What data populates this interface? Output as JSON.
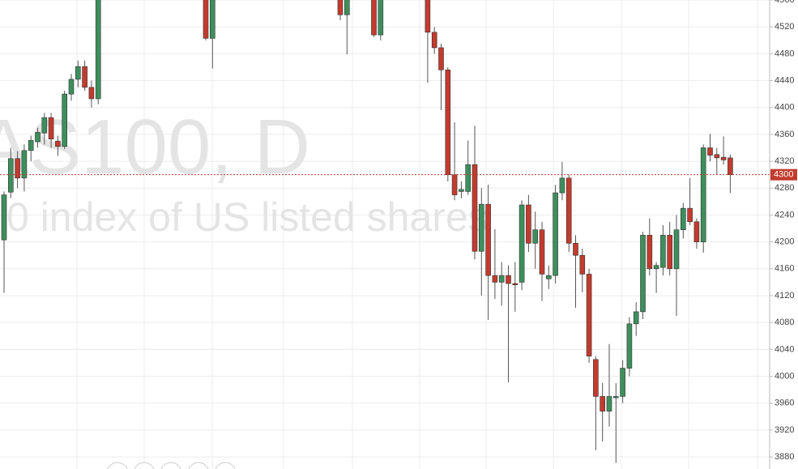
{
  "chart_data": {
    "type": "candlestick",
    "watermark_title": "AS100, D",
    "watermark_subtitle": "0 index of US listed shares",
    "up_color": "#3d8f5c",
    "down_color": "#c23b2e",
    "grid": true,
    "ylim": [
      3862,
      4560
    ],
    "yticks": [
      3880,
      3920,
      3960,
      4000,
      4040,
      4080,
      4120,
      4160,
      4200,
      4240,
      4280,
      4320,
      4360,
      4400,
      4440,
      4480,
      4520,
      4560
    ],
    "last_price": 4300,
    "open": [
      4203,
      4274,
      4324,
      4295,
      4336,
      4349,
      4362,
      4385,
      4350,
      4342,
      4420,
      4442,
      4461,
      4430,
      4413,
      null,
      null,
      null,
      null,
      null,
      null,
      null,
      null,
      null,
      null,
      null,
      null,
      null,
      null,
      null,
      4570,
      4503,
      null,
      null,
      null,
      null,
      null,
      null,
      null,
      null,
      null,
      null,
      null,
      null,
      null,
      null,
      null,
      null,
      null,
      null,
      4570,
      4538,
      null,
      null,
      null,
      4570,
      4508,
      null,
      null,
      null,
      null,
      null,
      null,
      4570,
      4512,
      4489,
      4456,
      4300,
      4275,
      4275,
      4315,
      4186,
      4256,
      4150,
      4140,
      4150,
      4138,
      4140,
      4255,
      4198,
      4218,
      4145,
      4150,
      4273,
      4295,
      4198,
      4180,
      4152,
      4025,
      3970,
      3948,
      3968,
      3970,
      4012,
      4078,
      4096,
      4210,
      4160,
      4162,
      4210,
      4160,
      4218,
      4250,
      4230,
      4200,
      4340,
      4330,
      4326,
      4325
    ],
    "close": [
      4270,
      4324,
      4295,
      4336,
      4351,
      4363,
      4385,
      4353,
      4342,
      4420,
      4442,
      4461,
      4430,
      4413,
      4570,
      null,
      null,
      null,
      null,
      null,
      null,
      null,
      null,
      null,
      null,
      null,
      null,
      null,
      null,
      null,
      4503,
      4570,
      null,
      null,
      null,
      null,
      null,
      null,
      null,
      null,
      null,
      null,
      null,
      null,
      null,
      null,
      null,
      null,
      null,
      null,
      4538,
      4570,
      null,
      null,
      null,
      4508,
      4570,
      null,
      null,
      null,
      null,
      null,
      null,
      4512,
      4489,
      4456,
      4300,
      4270,
      4278,
      4315,
      4186,
      4256,
      4150,
      4140,
      4150,
      4138,
      4136,
      4255,
      4198,
      4218,
      4152,
      4150,
      4273,
      4295,
      4198,
      4180,
      4152,
      4030,
      3970,
      3948,
      3970,
      3970,
      4012,
      4078,
      4096,
      4210,
      4160,
      4165,
      4210,
      4160,
      4218,
      4250,
      4230,
      4200,
      4340,
      4329,
      4325,
      4322,
      4300
    ],
    "high": [
      4275,
      4340,
      4335,
      4345,
      4358,
      4370,
      4392,
      4392,
      4358,
      4425,
      4450,
      4470,
      4470,
      4440,
      4580,
      null,
      null,
      null,
      null,
      null,
      null,
      null,
      null,
      null,
      null,
      null,
      null,
      null,
      null,
      null,
      4580,
      4580,
      null,
      null,
      null,
      null,
      null,
      null,
      null,
      null,
      null,
      null,
      null,
      null,
      null,
      null,
      null,
      null,
      null,
      null,
      4580,
      4580,
      null,
      null,
      null,
      4580,
      4580,
      null,
      null,
      null,
      null,
      null,
      null,
      4580,
      4520,
      4495,
      4460,
      4378,
      4290,
      4351,
      4373,
      4280,
      4285,
      4219,
      4170,
      4165,
      4170,
      4262,
      4270,
      4245,
      4230,
      4165,
      4285,
      4319,
      4300,
      4210,
      4190,
      4160,
      4030,
      3990,
      4048,
      3990,
      4024,
      4088,
      4110,
      4215,
      4235,
      4170,
      4225,
      4230,
      4240,
      4258,
      4295,
      4235,
      4345,
      4361,
      4340,
      4357,
      4330
    ],
    "low": [
      4124,
      4265,
      4280,
      4275,
      4320,
      4340,
      4345,
      4340,
      4328,
      4338,
      4410,
      4430,
      4425,
      4400,
      4405,
      null,
      null,
      null,
      null,
      null,
      null,
      null,
      null,
      null,
      null,
      null,
      null,
      null,
      null,
      null,
      4500,
      4458,
      null,
      null,
      null,
      null,
      null,
      null,
      null,
      null,
      null,
      null,
      null,
      null,
      null,
      null,
      null,
      null,
      null,
      null,
      4530,
      4479,
      null,
      null,
      null,
      4505,
      4500,
      null,
      null,
      null,
      null,
      null,
      null,
      4437,
      4480,
      4396,
      4290,
      4262,
      4265,
      4270,
      4174,
      4120,
      4084,
      4115,
      4105,
      3991,
      4096,
      4128,
      4185,
      4160,
      4112,
      4130,
      4138,
      4262,
      4185,
      4102,
      4125,
      4020,
      3890,
      3903,
      3925,
      3871,
      3960,
      4000,
      4060,
      4085,
      4150,
      4124,
      4150,
      4150,
      4090,
      4205,
      4225,
      4190,
      4184,
      4320,
      4300,
      4315,
      4273
    ]
  }
}
